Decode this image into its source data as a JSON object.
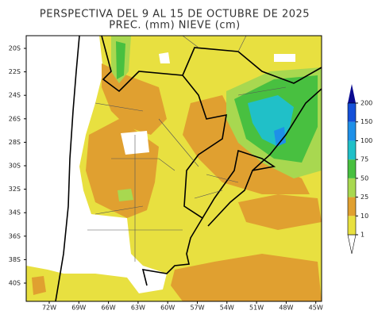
{
  "title": [
    "PERSPECTIVA DEL 9 AL 15 DE OCTUBRE DE 2025",
    "PREC. (mm) NIEVE (cm)"
  ],
  "lat_labels": [
    "20S",
    "22S",
    "24S",
    "26S",
    "28S",
    "30S",
    "32S",
    "34S",
    "36S",
    "38S",
    "40S"
  ],
  "lon_labels": [
    "72W",
    "69W",
    "66W",
    "63W",
    "60W",
    "57W",
    "54W",
    "51W",
    "48W",
    "45W"
  ],
  "colorbar": {
    "levels": [
      1,
      10,
      25,
      50,
      75,
      100,
      150,
      200
    ],
    "colors": [
      "#e8e040",
      "#e0a030",
      "#a8d850",
      "#48c040",
      "#20c0c8",
      "#1e90e8",
      "#1450d8",
      "#0a0a90"
    ]
  }
}
